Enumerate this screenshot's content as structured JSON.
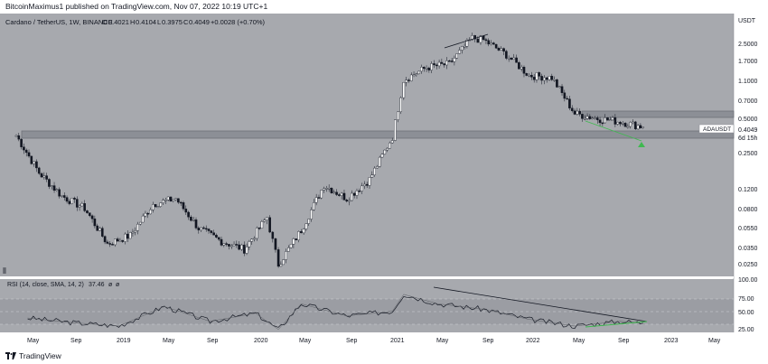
{
  "header": {
    "publisher": "BitcoinMaximus1 published on TradingView.com, Nov 07, 2022 10:19 UTC+1"
  },
  "legend": {
    "symbol": "Cardano / TetherUS, 1W, BINANCE",
    "o_label": "O",
    "o_value": "0.4021",
    "h_label": "H",
    "h_value": "0.4104",
    "l_label": "L",
    "l_value": "0.3975",
    "c_label": "C",
    "c_value": "0.4049",
    "change": "+0.0028 (+0.70%)",
    "up_color": "#26a69a"
  },
  "price_axis": {
    "currency": "USDT",
    "ticks": [
      "2.5000",
      "1.7000",
      "1.1000",
      "0.7000",
      "0.5000",
      "0.2500",
      "0.1200",
      "0.0800",
      "0.0550",
      "0.0350",
      "0.0250"
    ]
  },
  "last_price": {
    "label": "ADAUSDT",
    "value": "0.4049",
    "countdown": "6d 15h"
  },
  "rsi": {
    "title": "RSI (14, close, SMA, 14, 2)",
    "value": "37.46",
    "na1": "ø",
    "na2": "ø",
    "ticks": [
      "100.00",
      "75.00",
      "50.00",
      "25.00"
    ]
  },
  "time_axis": [
    "May",
    "Sep",
    "2019",
    "May",
    "Sep",
    "2020",
    "May",
    "Sep",
    "2021",
    "May",
    "Sep",
    "2022",
    "May",
    "Sep",
    "2023",
    "May"
  ],
  "footer": {
    "brand": "TradingView"
  },
  "colors": {
    "panel_bg": "#a7a9ae",
    "candle": "#ffffff",
    "divergence": "#3fb950",
    "zone": "#8c8f96"
  },
  "chart_data": {
    "type": "candlestick",
    "title": "Cardano / TetherUS, 1W, BINANCE",
    "y_scale": "log",
    "ylim": [
      0.02,
      3.6
    ],
    "x_range": [
      "2018-04",
      "2023-06"
    ],
    "series": [
      {
        "name": "ADAUSDT",
        "x": [
          "2018-04",
          "2018-06",
          "2018-08",
          "2018-10",
          "2018-12",
          "2019-02",
          "2019-04",
          "2019-06",
          "2019-08",
          "2019-10",
          "2019-12",
          "2020-02",
          "2020-03",
          "2020-05",
          "2020-07",
          "2020-09",
          "2020-11",
          "2021-01",
          "2021-02",
          "2021-04",
          "2021-06",
          "2021-08",
          "2021-09",
          "2021-11",
          "2022-01",
          "2022-03",
          "2022-05",
          "2022-07",
          "2022-09",
          "2022-11"
        ],
        "values": [
          0.34,
          0.16,
          0.1,
          0.078,
          0.038,
          0.045,
          0.085,
          0.095,
          0.052,
          0.04,
          0.034,
          0.065,
          0.025,
          0.05,
          0.125,
          0.095,
          0.14,
          0.33,
          1.05,
          1.35,
          1.45,
          2.45,
          2.35,
          1.75,
          1.15,
          1.1,
          0.53,
          0.48,
          0.45,
          0.405
        ]
      }
    ],
    "support_resistance_zone": [
      0.36,
      0.4
    ],
    "resistance_zone": [
      0.53,
      0.57
    ],
    "rsi_series": {
      "x": [
        "2018-05",
        "2018-09",
        "2019-01",
        "2019-05",
        "2019-09",
        "2020-01",
        "2020-03",
        "2020-05",
        "2020-09",
        "2021-01",
        "2021-02",
        "2021-05",
        "2021-09",
        "2022-01",
        "2022-05",
        "2022-09",
        "2022-11"
      ],
      "values": [
        45,
        38,
        33,
        62,
        40,
        52,
        28,
        66,
        48,
        55,
        80,
        66,
        58,
        43,
        33,
        40,
        37.46
      ]
    },
    "ylabel": "USDT"
  }
}
